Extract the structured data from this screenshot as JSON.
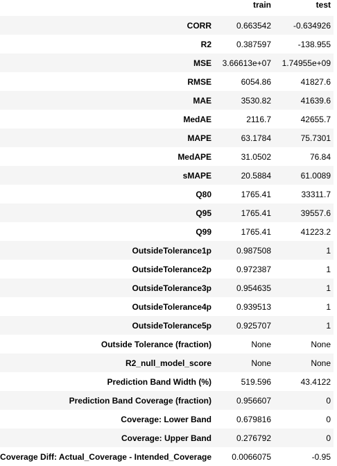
{
  "columns": {
    "train": "train",
    "test": "test"
  },
  "rows": [
    {
      "label": "CORR",
      "train": "0.663542",
      "test": "-0.634926"
    },
    {
      "label": "R2",
      "train": "0.387597",
      "test": "-138.955"
    },
    {
      "label": "MSE",
      "train": "3.66613e+07",
      "test": "1.74955e+09"
    },
    {
      "label": "RMSE",
      "train": "6054.86",
      "test": "41827.6"
    },
    {
      "label": "MAE",
      "train": "3530.82",
      "test": "41639.6"
    },
    {
      "label": "MedAE",
      "train": "2116.7",
      "test": "42655.7"
    },
    {
      "label": "MAPE",
      "train": "63.1784",
      "test": "75.7301"
    },
    {
      "label": "MedAPE",
      "train": "31.0502",
      "test": "76.84"
    },
    {
      "label": "sMAPE",
      "train": "20.5884",
      "test": "61.0089"
    },
    {
      "label": "Q80",
      "train": "1765.41",
      "test": "33311.7"
    },
    {
      "label": "Q95",
      "train": "1765.41",
      "test": "39557.6"
    },
    {
      "label": "Q99",
      "train": "1765.41",
      "test": "41223.2"
    },
    {
      "label": "OutsideTolerance1p",
      "train": "0.987508",
      "test": "1"
    },
    {
      "label": "OutsideTolerance2p",
      "train": "0.972387",
      "test": "1"
    },
    {
      "label": "OutsideTolerance3p",
      "train": "0.954635",
      "test": "1"
    },
    {
      "label": "OutsideTolerance4p",
      "train": "0.939513",
      "test": "1"
    },
    {
      "label": "OutsideTolerance5p",
      "train": "0.925707",
      "test": "1"
    },
    {
      "label": "Outside Tolerance (fraction)",
      "train": "None",
      "test": "None"
    },
    {
      "label": "R2_null_model_score",
      "train": "None",
      "test": "None"
    },
    {
      "label": "Prediction Band Width (%)",
      "train": "519.596",
      "test": "43.4122"
    },
    {
      "label": "Prediction Band Coverage (fraction)",
      "train": "0.956607",
      "test": "0"
    },
    {
      "label": "Coverage: Lower Band",
      "train": "0.679816",
      "test": "0"
    },
    {
      "label": "Coverage: Upper Band",
      "train": "0.276792",
      "test": "0"
    },
    {
      "label": "Coverage Diff: Actual_Coverage - Intended_Coverage",
      "train": "0.0066075",
      "test": "-0.95"
    }
  ]
}
